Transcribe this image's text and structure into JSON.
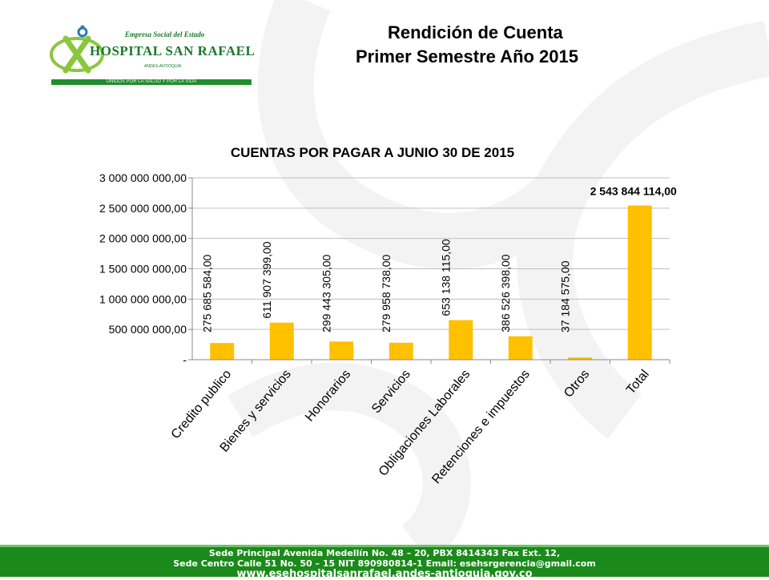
{
  "logo": {
    "top_text": "Empresa Social del Estado",
    "name": "HOSPITAL SAN RAFAEL",
    "location": "ANDES-ANTIOQUIA",
    "band_text": "UNIDOS POR LA SALUD Y POR LA VIDA"
  },
  "header": {
    "title_line1": "Rendición de Cuenta",
    "title_line2": "Primer Semestre  Año  2015"
  },
  "colors": {
    "bar": "#ffc000",
    "footer_bg": "#1b8a1b",
    "brand_green": "#1a7a2a"
  },
  "chart_data": {
    "type": "bar",
    "title": "CUENTAS POR PAGAR A JUNIO 30 DE 2015",
    "categories": [
      "Credito publico",
      "Bienes y servicios",
      "Honorarios",
      "Servicios",
      "Obligaciones Laborales",
      "Retenciones e impuestos",
      "Otros",
      "Total"
    ],
    "values": [
      275685584,
      611907399,
      299443305,
      279958738,
      653138115,
      386526398,
      37184575,
      2543844114
    ],
    "data_labels": [
      "275 685 584,00",
      "611 907 399,00",
      "299 443 305,00",
      "279 958 738,00",
      "653 138 115,00",
      "386 526 398,00",
      "37 184 575,00",
      "2 543 844 114,00"
    ],
    "yticks": [
      0,
      500000000,
      1000000000,
      1500000000,
      2000000000,
      2500000000,
      3000000000
    ],
    "ytick_labels": [
      "-",
      "500 000 000,00",
      "1 000 000 000,00",
      "1 500 000 000,00",
      "2 000 000 000,00",
      "2 500 000 000,00",
      "3 000 000 000,00"
    ],
    "ylim": [
      0,
      3000000000
    ],
    "grid": true,
    "xlabel": "",
    "ylabel": ""
  },
  "footer": {
    "line1": "Sede Principal Avenida Medellín No. 48 – 20, PBX 8414343 Fax Ext. 12,",
    "line2": "Sede Centro Calle 51 No. 50 – 15 NIT 890980814-1 Email: esehsrgerencia@gmail.com",
    "line3": "www.esehospitalsanrafael.andes-antioquia.gov.co"
  }
}
